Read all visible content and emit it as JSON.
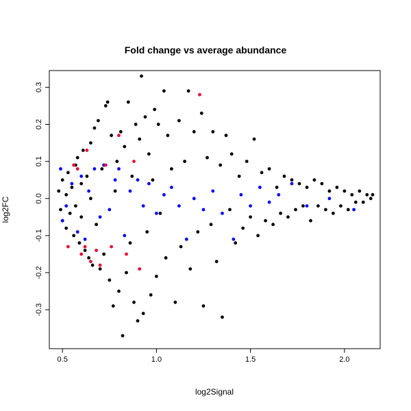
{
  "chart_data": {
    "type": "scatter",
    "title": "Fold change vs average abundance",
    "xlabel": "log2Signal",
    "ylabel": "log2FC",
    "xlim": [
      0.43,
      2.19
    ],
    "ylim": [
      -0.405,
      0.345
    ],
    "x_ticks": [
      0.5,
      1.0,
      1.5,
      2.0
    ],
    "x_tick_labels": [
      "0.5",
      "1.0",
      "1.5",
      "2.0"
    ],
    "y_ticks": [
      -0.3,
      -0.2,
      -0.1,
      0.0,
      0.1,
      0.2,
      0.3
    ],
    "y_tick_labels": [
      "-0.3",
      "-0.2",
      "-0.1",
      "0.0",
      "0.1",
      "0.2",
      "0.3"
    ],
    "grid": false,
    "legend": "none",
    "colors": {
      "default": "#000000",
      "highlight_blue": "#0000ff",
      "highlight_red": "#ee0033"
    },
    "series": [
      {
        "color": "#000000",
        "points": [
          [
            0.48,
            0.02
          ],
          [
            0.49,
            -0.03
          ],
          [
            0.5,
            0.05
          ],
          [
            0.5,
            -0.06
          ],
          [
            0.52,
            0.01
          ],
          [
            0.52,
            -0.08
          ],
          [
            0.53,
            0.07
          ],
          [
            0.54,
            -0.04
          ],
          [
            0.55,
            0.03
          ],
          [
            0.56,
            -0.1
          ],
          [
            0.57,
            0.09
          ],
          [
            0.57,
            -0.02
          ],
          [
            0.58,
            0.11
          ],
          [
            0.59,
            -0.12
          ],
          [
            0.6,
            0.04
          ],
          [
            0.6,
            -0.05
          ],
          [
            0.61,
            0.13
          ],
          [
            0.62,
            -0.14
          ],
          [
            0.63,
            0.06
          ],
          [
            0.64,
            -0.16
          ],
          [
            0.65,
            0.15
          ],
          [
            0.65,
            0.0
          ],
          [
            0.66,
            -0.18
          ],
          [
            0.67,
            0.19
          ],
          [
            0.68,
            -0.07
          ],
          [
            0.69,
            0.21
          ],
          [
            0.7,
            -0.19
          ],
          [
            0.71,
            0.08
          ],
          [
            0.72,
            -0.15
          ],
          [
            0.73,
            0.25
          ],
          [
            0.74,
            0.26
          ],
          [
            0.75,
            -0.22
          ],
          [
            0.76,
            0.17
          ],
          [
            0.77,
            -0.29
          ],
          [
            0.78,
            0.02
          ],
          [
            0.79,
            0.1
          ],
          [
            0.8,
            -0.25
          ],
          [
            0.81,
            0.18
          ],
          [
            0.82,
            -0.37
          ],
          [
            0.83,
            0.14
          ],
          [
            0.84,
            -0.2
          ],
          [
            0.85,
            0.26
          ],
          [
            0.86,
            -0.12
          ],
          [
            0.87,
            0.06
          ],
          [
            0.88,
            -0.28
          ],
          [
            0.89,
            0.2
          ],
          [
            0.9,
            -0.33
          ],
          [
            0.91,
            0.16
          ],
          [
            0.92,
            0.33
          ],
          [
            0.93,
            -0.31
          ],
          [
            0.94,
            0.22
          ],
          [
            0.95,
            -0.09
          ],
          [
            0.96,
            0.12
          ],
          [
            0.97,
            -0.26
          ],
          [
            0.98,
            0.05
          ],
          [
            0.99,
            0.24
          ],
          [
            1.0,
            -0.21
          ],
          [
            1.01,
            0.2
          ],
          [
            1.02,
            -0.04
          ],
          [
            1.04,
            0.29
          ],
          [
            1.05,
            -0.16
          ],
          [
            1.06,
            0.17
          ],
          [
            1.08,
            0.08
          ],
          [
            1.1,
            -0.28
          ],
          [
            1.12,
            0.21
          ],
          [
            1.13,
            -0.13
          ],
          [
            1.15,
            0.1
          ],
          [
            1.17,
            0.29
          ],
          [
            1.18,
            -0.19
          ],
          [
            1.2,
            0.18
          ],
          [
            1.22,
            -0.09
          ],
          [
            1.24,
            0.23
          ],
          [
            1.25,
            -0.29
          ],
          [
            1.27,
            0.11
          ],
          [
            1.29,
            -0.07
          ],
          [
            1.3,
            0.18
          ],
          [
            1.32,
            -0.17
          ],
          [
            1.34,
            0.09
          ],
          [
            1.35,
            -0.32
          ],
          [
            1.37,
            0.17
          ],
          [
            1.39,
            -0.03
          ],
          [
            1.4,
            0.12
          ],
          [
            1.42,
            -0.12
          ],
          [
            1.44,
            0.06
          ],
          [
            1.46,
            -0.08
          ],
          [
            1.48,
            0.1
          ],
          [
            1.5,
            -0.05
          ],
          [
            1.52,
            0.16
          ],
          [
            1.54,
            -0.1
          ],
          [
            1.56,
            0.07
          ],
          [
            1.58,
            -0.06
          ],
          [
            1.6,
            0.08
          ],
          [
            1.62,
            -0.07
          ],
          [
            1.64,
            0.03
          ],
          [
            1.66,
            -0.04
          ],
          [
            1.68,
            0.06
          ],
          [
            1.7,
            -0.05
          ],
          [
            1.72,
            0.05
          ],
          [
            1.74,
            -0.03
          ],
          [
            1.76,
            0.04
          ],
          [
            1.78,
            -0.02
          ],
          [
            1.8,
            0.03
          ],
          [
            1.82,
            -0.06
          ],
          [
            1.84,
            0.05
          ],
          [
            1.86,
            -0.02
          ],
          [
            1.88,
            0.04
          ],
          [
            1.9,
            -0.03
          ],
          [
            1.92,
            0.02
          ],
          [
            1.94,
            -0.04
          ],
          [
            1.96,
            0.03
          ],
          [
            1.98,
            -0.02
          ],
          [
            2.0,
            0.02
          ],
          [
            2.02,
            -0.03
          ],
          [
            2.04,
            0.01
          ],
          [
            2.06,
            -0.01
          ],
          [
            2.08,
            0.02
          ],
          [
            2.1,
            -0.01
          ],
          [
            2.12,
            0.01
          ],
          [
            2.14,
            0.0
          ],
          [
            2.15,
            0.01
          ]
        ]
      },
      {
        "color": "#0000ff",
        "points": [
          [
            0.49,
            0.08
          ],
          [
            0.5,
            -0.06
          ],
          [
            0.52,
            -0.02
          ],
          [
            0.55,
            0.04
          ],
          [
            0.58,
            -0.09
          ],
          [
            0.6,
            0.06
          ],
          [
            0.62,
            -0.11
          ],
          [
            0.64,
            0.02
          ],
          [
            0.67,
            0.08
          ],
          [
            0.7,
            -0.05
          ],
          [
            0.72,
            0.09
          ],
          [
            0.75,
            -0.03
          ],
          [
            0.78,
            0.05
          ],
          [
            0.8,
            0.08
          ],
          [
            0.83,
            -0.1
          ],
          [
            0.86,
            0.02
          ],
          [
            0.9,
            0.05
          ],
          [
            0.93,
            -0.02
          ],
          [
            0.96,
            0.04
          ],
          [
            1.0,
            -0.04
          ],
          [
            1.04,
            0.01
          ],
          [
            1.08,
            0.03
          ],
          [
            1.12,
            -0.02
          ],
          [
            1.16,
            -0.11
          ],
          [
            1.2,
            0.0
          ],
          [
            1.25,
            -0.03
          ],
          [
            1.3,
            0.02
          ],
          [
            1.35,
            -0.04
          ],
          [
            1.41,
            -0.11
          ],
          [
            1.45,
            0.01
          ],
          [
            1.5,
            -0.02
          ],
          [
            1.55,
            0.03
          ],
          [
            1.6,
            -0.01
          ],
          [
            1.65,
            0.01
          ],
          [
            1.72,
            0.04
          ],
          [
            1.8,
            -0.02
          ],
          [
            1.92,
            0.0
          ],
          [
            2.05,
            -0.03
          ]
        ]
      },
      {
        "color": "#ee0033",
        "points": [
          [
            0.53,
            -0.13
          ],
          [
            0.56,
            0.09
          ],
          [
            0.58,
            0.08
          ],
          [
            0.6,
            -0.15
          ],
          [
            0.62,
            -0.13
          ],
          [
            0.63,
            0.13
          ],
          [
            0.65,
            -0.17
          ],
          [
            0.68,
            -0.14
          ],
          [
            0.7,
            -0.18
          ],
          [
            0.73,
            0.09
          ],
          [
            0.76,
            -0.13
          ],
          [
            0.8,
            0.17
          ],
          [
            0.84,
            -0.15
          ],
          [
            0.88,
            0.1
          ],
          [
            0.91,
            -0.19
          ],
          [
            1.23,
            0.28
          ]
        ]
      }
    ]
  }
}
